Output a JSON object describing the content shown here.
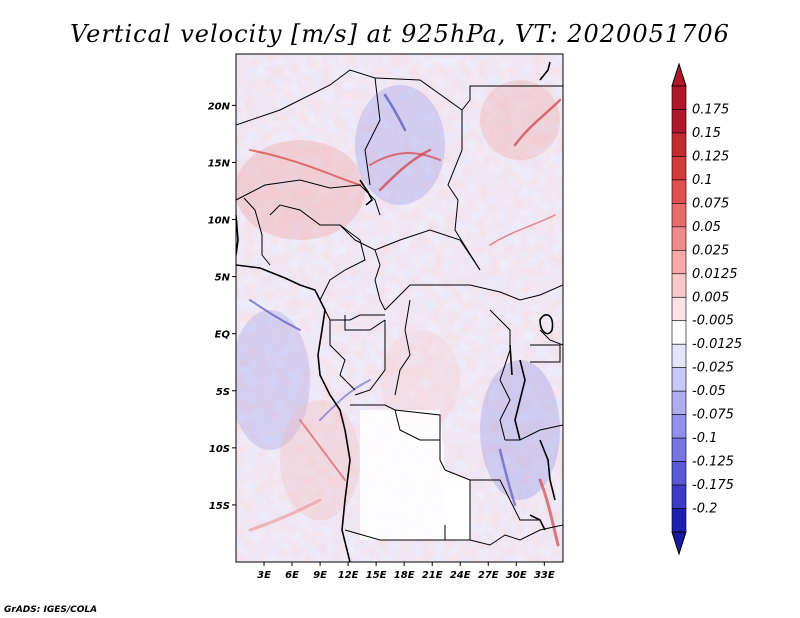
{
  "title": "Vertical velocity [m/s] at 925hPa, VT: 2020051706",
  "credit": "GrADS: IGES/COLA",
  "map": {
    "lat_ticks": [
      {
        "lat": 20,
        "label": "20N"
      },
      {
        "lat": 15,
        "label": "15N"
      },
      {
        "lat": 10,
        "label": "10N"
      },
      {
        "lat": 5,
        "label": "5N"
      },
      {
        "lat": 0,
        "label": "EQ"
      },
      {
        "lat": -5,
        "label": "5S"
      },
      {
        "lat": -10,
        "label": "10S"
      },
      {
        "lat": -15,
        "label": "15S"
      }
    ],
    "lon_ticks": [
      {
        "lon": 3,
        "label": "3E"
      },
      {
        "lon": 6,
        "label": "6E"
      },
      {
        "lon": 9,
        "label": "9E"
      },
      {
        "lon": 12,
        "label": "12E"
      },
      {
        "lon": 15,
        "label": "15E"
      },
      {
        "lon": 18,
        "label": "18E"
      },
      {
        "lon": 21,
        "label": "21E"
      },
      {
        "lon": 24,
        "label": "24E"
      },
      {
        "lon": 27,
        "label": "27E"
      },
      {
        "lon": 30,
        "label": "30E"
      },
      {
        "lon": 33,
        "label": "33E"
      }
    ],
    "lon_range": [
      0,
      35
    ],
    "lat_range": [
      -20,
      24.5
    ]
  },
  "colorbar": {
    "levels": [
      {
        "label": "0.175",
        "color": "#b2182b"
      },
      {
        "label": "0.15",
        "color": "#c62a31"
      },
      {
        "label": "0.125",
        "color": "#d63b3b"
      },
      {
        "label": "0.1",
        "color": "#e05050"
      },
      {
        "label": "0.075",
        "color": "#e86c6c"
      },
      {
        "label": "0.05",
        "color": "#ef8a8a"
      },
      {
        "label": "0.025",
        "color": "#f5a9a9"
      },
      {
        "label": "0.0125",
        "color": "#f9c8c8"
      },
      {
        "label": "0.005",
        "color": "#fce2e2"
      },
      {
        "label": "-0.005",
        "color": "#ffffff"
      },
      {
        "label": "-0.0125",
        "color": "#e4e4fc"
      },
      {
        "label": "-0.025",
        "color": "#c9c9f7"
      },
      {
        "label": "-0.05",
        "color": "#aeaef1"
      },
      {
        "label": "-0.075",
        "color": "#9292ea"
      },
      {
        "label": "-0.1",
        "color": "#7676e2"
      },
      {
        "label": "-0.125",
        "color": "#5a5ad8"
      },
      {
        "label": "-0.175",
        "color": "#3b3bc8"
      },
      {
        "label": "-0.2",
        "color": "#2020b0"
      }
    ],
    "top_color": "#b2182b",
    "bottom_color": "#1a1aa0"
  }
}
